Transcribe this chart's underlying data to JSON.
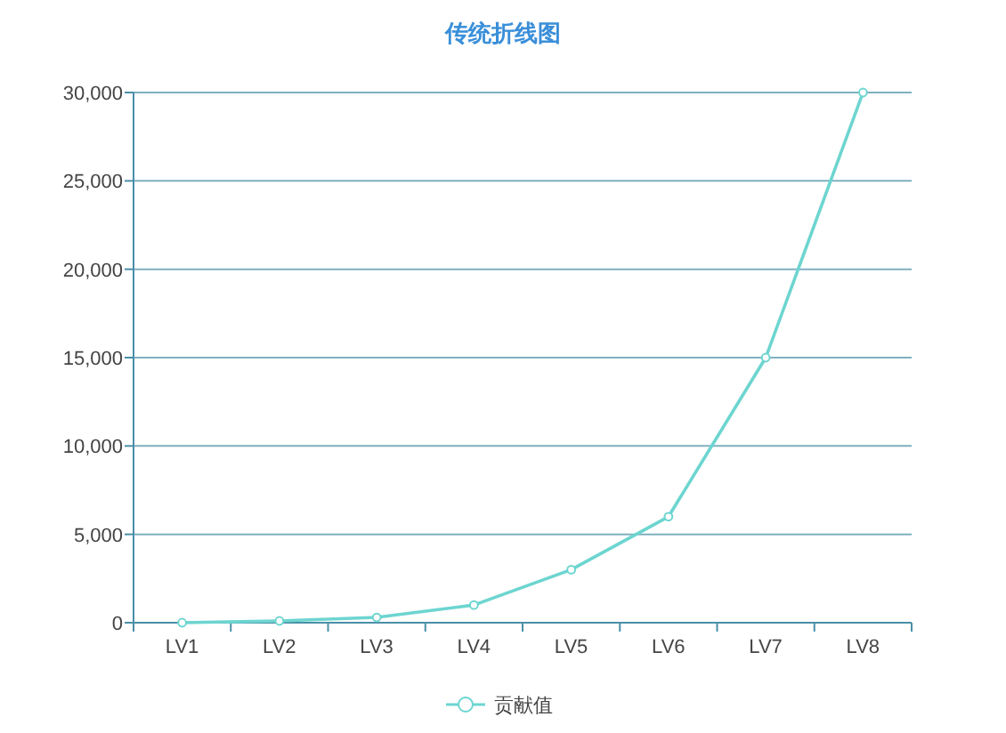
{
  "chart_data": {
    "type": "line",
    "title": "传统折线图",
    "categories": [
      "LV1",
      "LV2",
      "LV3",
      "LV4",
      "LV5",
      "LV6",
      "LV7",
      "LV8"
    ],
    "series": [
      {
        "name": "贡献值",
        "color": "#6dd5d0",
        "values": [
          0,
          100,
          300,
          1000,
          3000,
          6000,
          15000,
          30000
        ]
      }
    ],
    "ylim": [
      0,
      30000
    ],
    "yticks": [
      {
        "value": 0,
        "label": "0"
      },
      {
        "value": 5000,
        "label": "5,000"
      },
      {
        "value": 10000,
        "label": "10,000"
      },
      {
        "value": 15000,
        "label": "15,000"
      },
      {
        "value": 20000,
        "label": "20,000"
      },
      {
        "value": 25000,
        "label": "25,000"
      },
      {
        "value": 30000,
        "label": "30,000"
      }
    ],
    "grid": "y",
    "legend": "bottom",
    "marker": "circle",
    "line_style": "solid"
  }
}
